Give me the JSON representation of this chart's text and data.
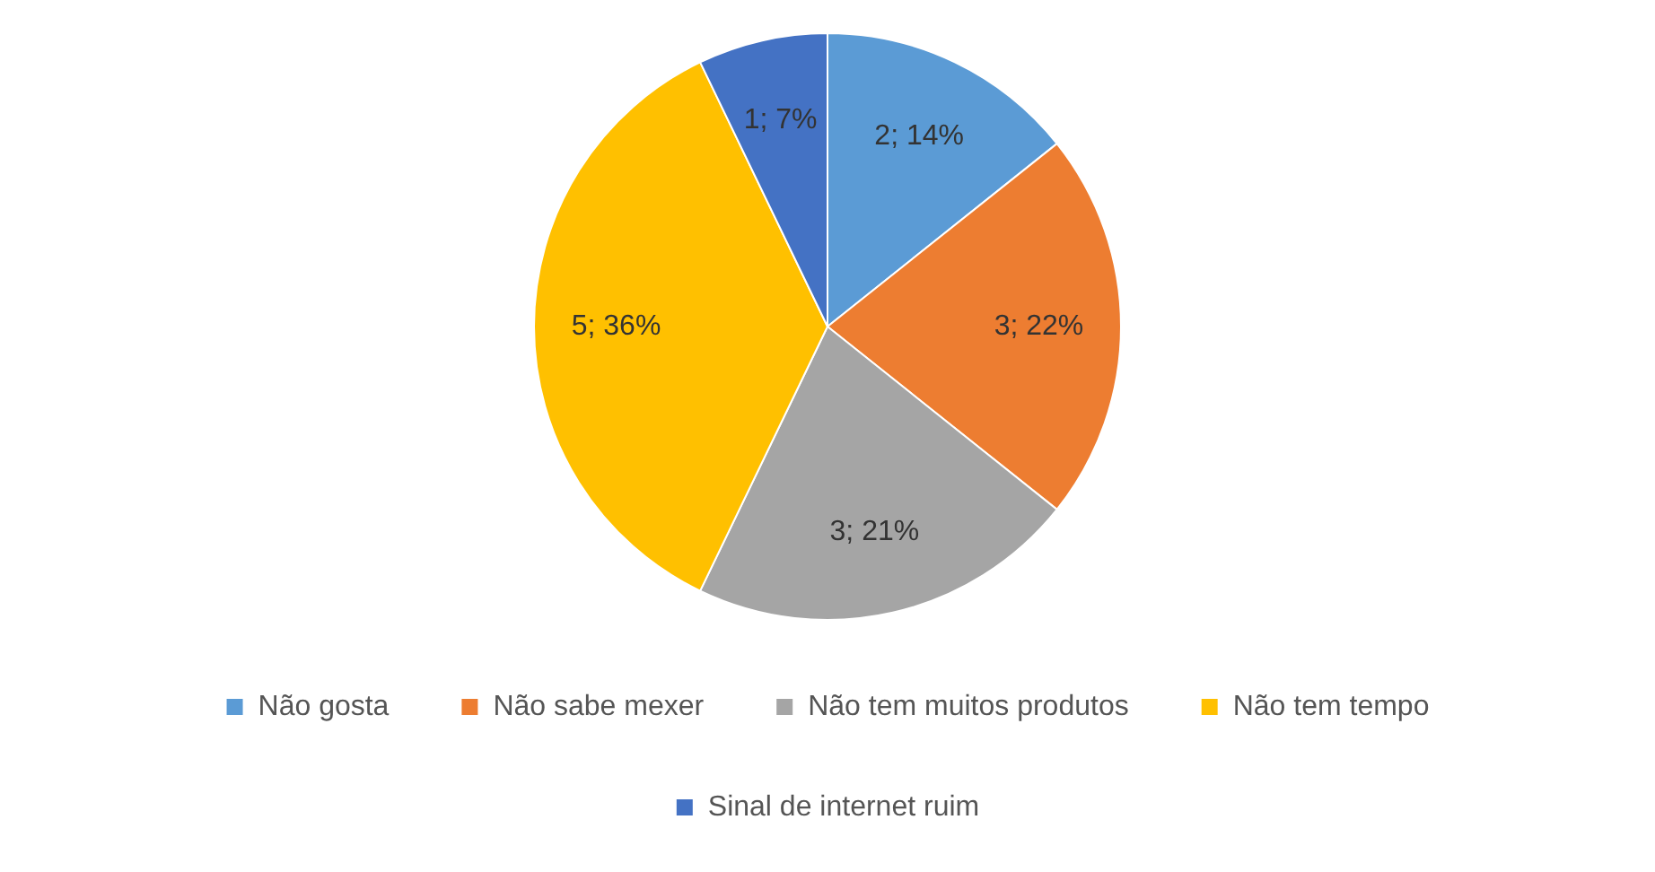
{
  "chart_data": {
    "type": "pie",
    "categories": [
      "Não gosta",
      "Não sabe mexer",
      "Não tem muitos produtos",
      "Não tem tempo",
      "Sinal de internet ruim"
    ],
    "values": [
      2,
      3,
      3,
      5,
      1
    ],
    "value_labels": [
      "2; 14%",
      "3; 22%",
      "3; 21%",
      "5; 36%",
      "1; 7%"
    ],
    "colors": [
      "#5b9bd5",
      "#ed7d31",
      "#a5a5a5",
      "#ffc000",
      "#4472c4"
    ],
    "legend": "bottom"
  }
}
